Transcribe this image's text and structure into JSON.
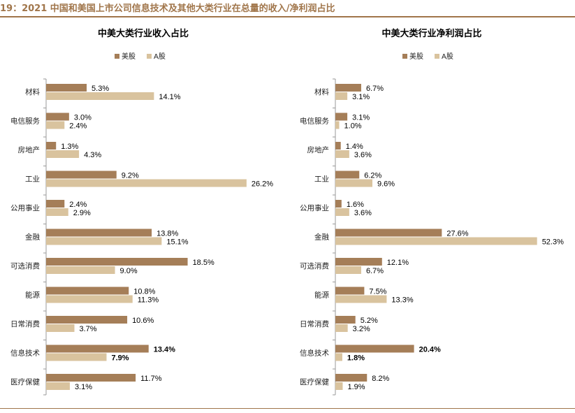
{
  "page": {
    "title": "19：2021 中国和美国上市公司信息技术及其他大类行业在总量的收入/净利润占比"
  },
  "colors": {
    "us": "#a57e58",
    "cn": "#d9c39e",
    "accent": "#a0754a",
    "axis": "#999999"
  },
  "chart_data": [
    {
      "type": "bar",
      "title": "中美大类行业收入占比",
      "categories": [
        "材料",
        "电信服务",
        "房地产",
        "工业",
        "公用事业",
        "金融",
        "可选消费",
        "能源",
        "日常消费",
        "信息技术",
        "医疗保健"
      ],
      "series": [
        {
          "name": "美股",
          "values": [
            5.3,
            3.0,
            1.3,
            9.2,
            2.4,
            13.8,
            18.5,
            10.8,
            10.6,
            13.4,
            11.7
          ]
        },
        {
          "name": "A股",
          "values": [
            14.1,
            2.4,
            4.3,
            26.2,
            2.9,
            15.1,
            9.0,
            11.3,
            3.7,
            7.9,
            3.1
          ]
        }
      ],
      "value_suffix": "%",
      "highlight_category": "信息技术",
      "xlim": [
        0,
        30
      ],
      "legend": "top"
    },
    {
      "type": "bar",
      "title": "中美大类行业净利润占比",
      "categories": [
        "材料",
        "电信服务",
        "房地产",
        "工业",
        "公用事业",
        "金融",
        "可选消费",
        "能源",
        "日常消费",
        "信息技术",
        "医疗保健"
      ],
      "series": [
        {
          "name": "美股",
          "values": [
            6.7,
            3.1,
            1.4,
            6.2,
            1.6,
            27.6,
            12.1,
            7.5,
            5.2,
            20.4,
            8.2
          ]
        },
        {
          "name": "A股",
          "values": [
            3.1,
            1.0,
            3.6,
            9.6,
            3.6,
            52.3,
            6.7,
            13.3,
            3.2,
            1.8,
            1.9
          ]
        }
      ],
      "value_suffix": "%",
      "highlight_category": "信息技术",
      "xlim": [
        0,
        60
      ],
      "legend": "top"
    }
  ]
}
